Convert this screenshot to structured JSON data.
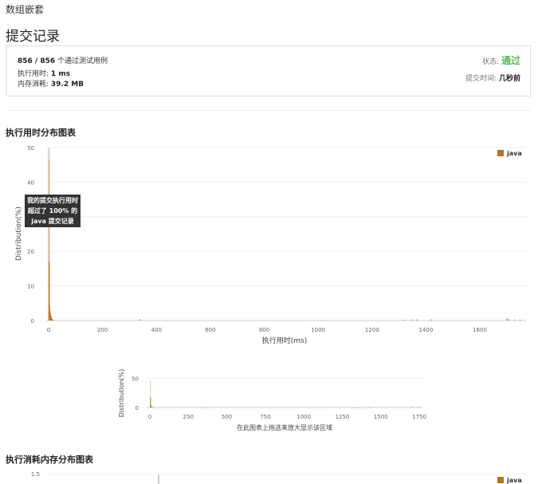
{
  "breadcrumb": "数组嵌套",
  "page_title": "提交记录",
  "summary": {
    "passed": "856 / 856",
    "passed_suffix": "个通过测试用例",
    "runtime_label": "执行用时:",
    "runtime_value": "1 ms",
    "memory_label": "内存消耗:",
    "memory_value": "39.2 MB",
    "status_label": "状态:",
    "status_value": "通过",
    "submitted_label": "提交时间:",
    "submitted_value": "几秒前"
  },
  "colors": {
    "accent": "#b8741a",
    "pass": "#5cb85c"
  },
  "runtime_section": {
    "title": "执行用时分布图表"
  },
  "memory_section": {
    "title": "执行消耗内存分布图表"
  },
  "tooltip": [
    "我的提交执行用时",
    "超过了 100% 的",
    "java 提交记录"
  ],
  "nav_hint": "在此图表上拖选来放大显示该区域",
  "chart_data": [
    {
      "type": "bar",
      "xlabel": "执行用时(ms)",
      "ylabel": "Distribution(%)",
      "xlim": [
        0,
        1760
      ],
      "ylim": [
        0,
        50
      ],
      "xticks": [
        0,
        200,
        400,
        600,
        800,
        1000,
        1200,
        1400,
        1600
      ],
      "yticks": [
        0,
        10,
        20,
        30,
        40,
        50
      ],
      "grid": true,
      "legend": "top-right",
      "highlight_x": 1,
      "series": [
        {
          "name": "java",
          "points": [
            [
              1,
              46.5
            ],
            [
              2,
              17
            ],
            [
              3,
              4.5
            ],
            [
              4,
              3
            ],
            [
              5,
              2.5
            ],
            [
              6,
              2
            ],
            [
              8,
              1.5
            ],
            [
              10,
              1
            ],
            [
              13,
              0.5
            ],
            [
              16,
              0.3
            ],
            [
              340,
              0.4
            ],
            [
              1320,
              0.2
            ],
            [
              1345,
              0.3
            ],
            [
              1365,
              0.3
            ],
            [
              1420,
              0.3
            ],
            [
              1700,
              0.6
            ],
            [
              1705,
              0.4
            ],
            [
              1730,
              0.3
            ],
            [
              1750,
              0.2
            ]
          ]
        }
      ]
    },
    {
      "type": "bar",
      "role": "navigator",
      "ylabel": "Distribution(%)",
      "xticks": [
        0,
        250,
        500,
        750,
        1000,
        1250,
        1500,
        1750
      ],
      "yticks": [
        0,
        50
      ],
      "ylim": [
        0,
        60
      ],
      "xlim": [
        0,
        1760
      ]
    },
    {
      "type": "bar",
      "role": "memory (partially visible)",
      "yticks": [
        1.5
      ],
      "legend": "top-right",
      "series": [
        {
          "name": "java"
        }
      ]
    }
  ]
}
